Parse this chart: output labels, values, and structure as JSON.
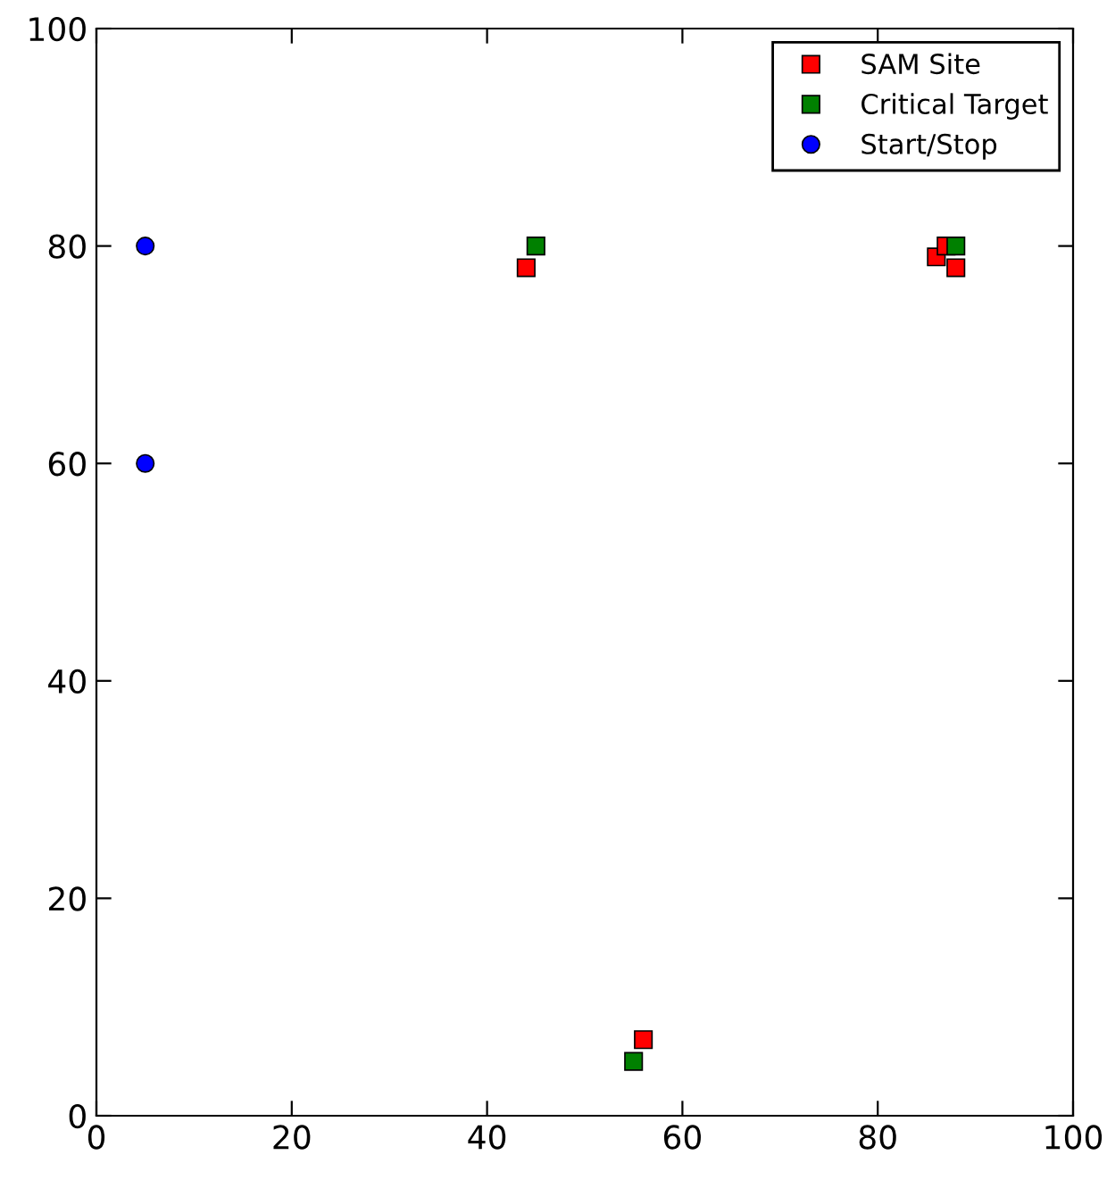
{
  "chart_data": {
    "type": "scatter",
    "xlim": [
      0,
      100
    ],
    "ylim": [
      0,
      100
    ],
    "xticks": [
      0,
      20,
      40,
      60,
      80,
      100
    ],
    "yticks": [
      0,
      20,
      40,
      60,
      80,
      100
    ],
    "grid": false,
    "legend": "top right",
    "series": [
      {
        "name": "SAM Site",
        "color": "#ff0000",
        "marker": "square",
        "x": [
          44,
          56,
          86,
          87,
          88
        ],
        "values": [
          78,
          7,
          79,
          80,
          78
        ]
      },
      {
        "name": "Critical Target",
        "color": "#008000",
        "marker": "square",
        "x": [
          45,
          55,
          88
        ],
        "values": [
          80,
          5,
          80
        ]
      },
      {
        "name": "Start/Stop",
        "color": "#0000ff",
        "marker": "circle",
        "x": [
          5,
          5
        ],
        "values": [
          80,
          60
        ]
      }
    ]
  }
}
